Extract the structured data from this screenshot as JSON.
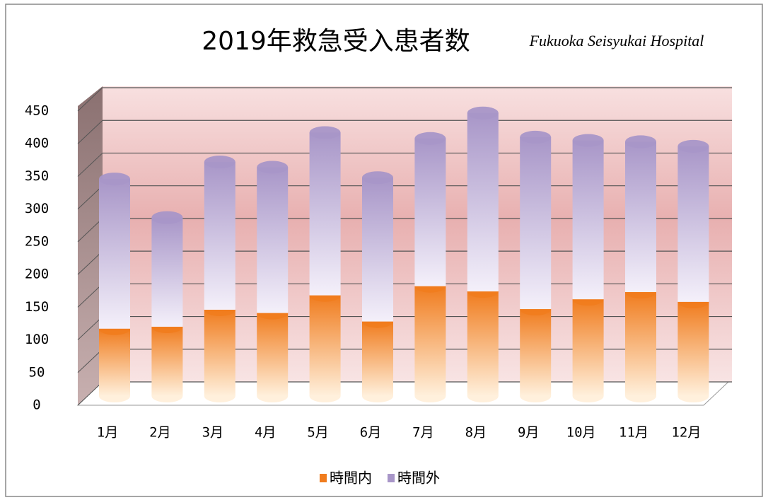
{
  "chart_data": {
    "type": "bar3d_stacked",
    "title": "2019年救急受入患者数",
    "subtitle": "Fukuoka Seisyukai Hospital",
    "categories": [
      "1月",
      "2月",
      "3月",
      "4月",
      "5月",
      "6月",
      "7月",
      "8月",
      "9月",
      "10月",
      "11月",
      "12月"
    ],
    "series": [
      {
        "name": "時間内",
        "color": "#f07c1e",
        "values": [
          103,
          106,
          132,
          127,
          154,
          114,
          168,
          160,
          133,
          148,
          159,
          144
        ]
      },
      {
        "name": "時間外",
        "color": "#a896c8",
        "values": [
          229,
          167,
          226,
          223,
          249,
          220,
          226,
          273,
          263,
          243,
          230,
          238
        ]
      }
    ],
    "ylim": [
      0,
      450
    ],
    "yticks": [
      0,
      50,
      100,
      150,
      200,
      250,
      300,
      350,
      400,
      450
    ],
    "grid": true,
    "legend": "bottom"
  }
}
